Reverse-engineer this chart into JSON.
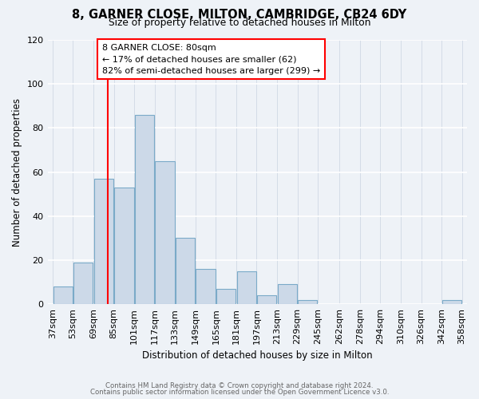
{
  "title": "8, GARNER CLOSE, MILTON, CAMBRIDGE, CB24 6DY",
  "subtitle": "Size of property relative to detached houses in Milton",
  "xlabel": "Distribution of detached houses by size in Milton",
  "ylabel": "Number of detached properties",
  "bar_left_edges": [
    37,
    53,
    69,
    85,
    101,
    117,
    133,
    149,
    165,
    181,
    197,
    213,
    229,
    245,
    262,
    278,
    294,
    310,
    326,
    342
  ],
  "bar_heights": [
    8,
    19,
    57,
    53,
    86,
    65,
    30,
    16,
    7,
    15,
    4,
    9,
    2,
    0,
    0,
    0,
    0,
    0,
    0,
    2
  ],
  "bin_width": 16,
  "bar_color": "#ccd9e8",
  "bar_edge_color": "#7aaac8",
  "redline_x": 80,
  "ylim": [
    0,
    120
  ],
  "yticks": [
    0,
    20,
    40,
    60,
    80,
    100,
    120
  ],
  "xtick_labels": [
    "37sqm",
    "53sqm",
    "69sqm",
    "85sqm",
    "101sqm",
    "117sqm",
    "133sqm",
    "149sqm",
    "165sqm",
    "181sqm",
    "197sqm",
    "213sqm",
    "229sqm",
    "245sqm",
    "262sqm",
    "278sqm",
    "294sqm",
    "310sqm",
    "326sqm",
    "342sqm",
    "358sqm"
  ],
  "annotation_title": "8 GARNER CLOSE: 80sqm",
  "annotation_line1": "← 17% of detached houses are smaller (62)",
  "annotation_line2": "82% of semi-detached houses are larger (299) →",
  "footer1": "Contains HM Land Registry data © Crown copyright and database right 2024.",
  "footer2": "Contains public sector information licensed under the Open Government Licence v3.0.",
  "background_color": "#eef2f7",
  "grid_color": "#d0d8e4"
}
